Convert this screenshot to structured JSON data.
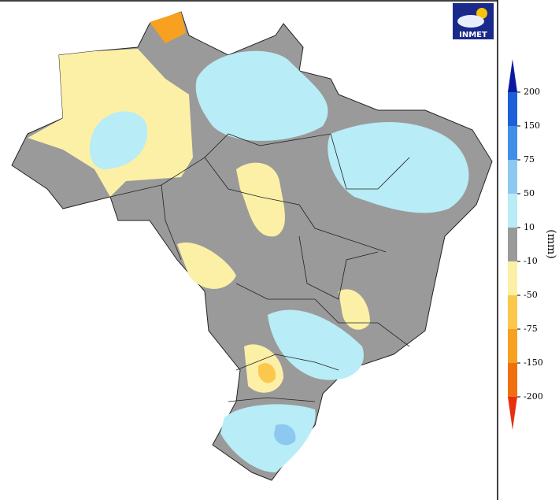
{
  "logo": {
    "text": "INMET"
  },
  "legend": {
    "unit": "(mm)",
    "levels": [
      200,
      150,
      75,
      50,
      10,
      -10,
      -50,
      -75,
      -150,
      -200
    ],
    "colors": [
      "#0a1aa0",
      "#1c5fd8",
      "#3f8fe8",
      "#8cc8f0",
      "#b8ecf6",
      "#9a9a9a",
      "#fbf0a6",
      "#fcc84c",
      "#f8a020",
      "#f07010",
      "#e83010"
    ]
  }
}
